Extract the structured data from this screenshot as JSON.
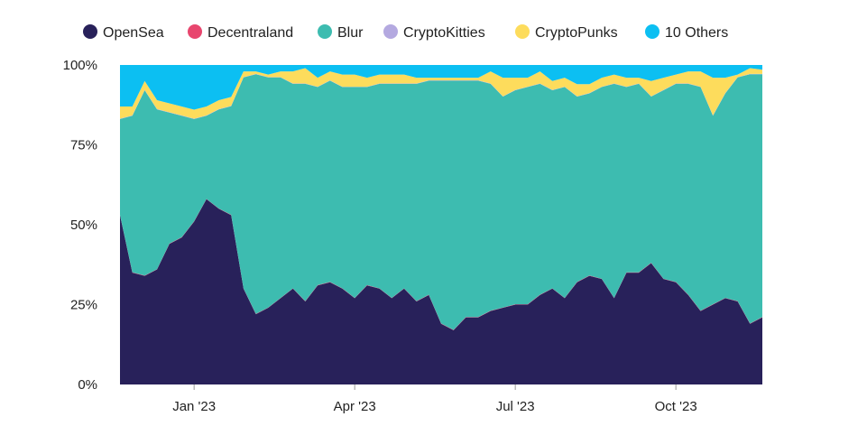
{
  "chart_data": {
    "type": "area",
    "stacked": "percent",
    "legend_position": "top",
    "y_ticks": [
      "0%",
      "25%",
      "50%",
      "75%",
      "100%"
    ],
    "x_tick_labels": [
      "Jan '23",
      "Apr '23",
      "Jul '23",
      "Oct '23"
    ],
    "x_tick_weeks": [
      6,
      19,
      32,
      45
    ],
    "weeks": 52,
    "series": [
      {
        "name": "OpenSea",
        "color": "#28215a",
        "values": [
          53,
          35,
          34,
          36,
          44,
          46,
          51,
          58,
          55,
          53,
          30,
          22,
          24,
          27,
          30,
          26,
          31,
          32,
          30,
          27,
          31,
          30,
          27,
          30,
          26,
          28,
          19,
          17,
          21,
          21,
          23,
          24,
          25,
          25,
          28,
          30,
          27,
          32,
          34,
          33,
          27,
          35,
          35,
          38,
          33,
          32,
          28,
          23,
          25,
          27,
          26,
          19,
          21
        ]
      },
      {
        "name": "Decentraland",
        "color": "#e8466e",
        "values": [
          0.1,
          0.1,
          0.1,
          0.1,
          0.1,
          0.1,
          0.1,
          0.1,
          0.1,
          0.1,
          0.1,
          0.1,
          0.1,
          0.1,
          0.1,
          0.1,
          0.1,
          0.1,
          0.1,
          0.1,
          0.1,
          0.1,
          0.1,
          0.1,
          0.1,
          0.1,
          0.1,
          0.1,
          0.1,
          0.1,
          0.1,
          0.1,
          0.1,
          0.1,
          0.1,
          0.1,
          0.1,
          0.1,
          0.1,
          0.1,
          0.1,
          0.1,
          0.1,
          0.1,
          0.1,
          0.1,
          0.1,
          0.1,
          0.1,
          0.1,
          0.1,
          0.1,
          0.1
        ]
      },
      {
        "name": "Blur",
        "color": "#3dbcb0",
        "values": [
          30,
          49,
          58,
          50,
          41,
          38,
          32,
          26,
          31,
          34,
          66,
          75,
          72,
          69,
          64,
          68,
          62,
          63,
          63,
          66,
          62,
          64,
          67,
          64,
          68,
          67,
          76,
          78,
          74,
          74,
          71,
          66,
          67,
          68,
          66,
          62,
          66,
          58,
          57,
          60,
          67,
          58,
          59,
          52,
          59,
          62,
          66,
          70,
          59,
          64,
          70,
          78,
          76
        ]
      },
      {
        "name": "CryptoKitties",
        "color": "#b4a9e0",
        "values": [
          0.1,
          0.1,
          0.1,
          0.1,
          0.1,
          0.1,
          0.1,
          0.1,
          0.1,
          0.1,
          0.1,
          0.1,
          0.1,
          0.1,
          0.1,
          0.1,
          0.1,
          0.1,
          0.1,
          0.1,
          0.1,
          0.1,
          0.1,
          0.1,
          0.1,
          0.1,
          0.1,
          0.1,
          0.1,
          0.1,
          0.1,
          0.1,
          0.1,
          0.1,
          0.1,
          0.1,
          0.1,
          0.1,
          0.1,
          0.1,
          0.1,
          0.1,
          0.1,
          0.1,
          0.1,
          0.1,
          0.1,
          0.1,
          0.1,
          0.1,
          0.1,
          0.1,
          0.1
        ]
      },
      {
        "name": "CryptoPunks",
        "color": "#fddc5c",
        "values": [
          3.8,
          2.8,
          2.8,
          2.8,
          2.8,
          2.8,
          2.8,
          2.8,
          2.8,
          2.8,
          1.8,
          0.8,
          0.8,
          1.8,
          3.8,
          4.8,
          2.8,
          2.8,
          3.8,
          3.8,
          2.8,
          2.8,
          2.8,
          2.8,
          1.8,
          0.8,
          0.8,
          0.8,
          0.8,
          0.8,
          3.8,
          5.8,
          3.8,
          2.8,
          3.8,
          2.8,
          2.8,
          3.8,
          2.8,
          2.8,
          2.8,
          2.8,
          1.8,
          4.8,
          3.8,
          2.8,
          3.8,
          4.8,
          11.8,
          4.8,
          0.8,
          1.8,
          1.3
        ]
      },
      {
        "name": "10 Others",
        "color": "#0cbff2",
        "values": [
          13,
          13,
          5,
          11,
          12,
          13,
          14,
          13,
          11,
          10,
          2,
          2,
          3,
          2,
          2,
          1,
          4,
          2,
          3,
          3,
          4,
          3,
          3,
          3,
          4,
          4,
          4,
          4,
          4,
          4,
          2,
          4,
          4,
          4,
          2,
          5,
          4,
          6,
          6,
          4,
          3,
          4,
          4,
          5,
          4,
          3,
          2,
          2,
          4,
          4,
          3,
          1,
          1.5
        ]
      }
    ]
  }
}
